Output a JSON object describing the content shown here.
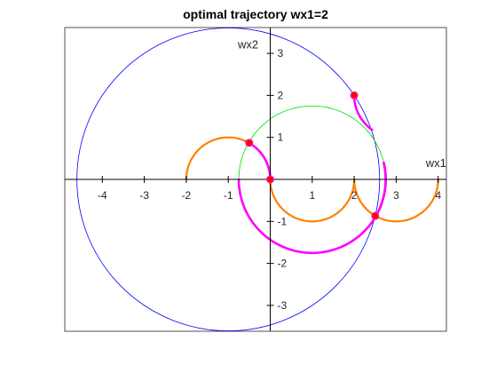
{
  "chart_data": {
    "type": "line",
    "title": "optimal trajectory wx1=2",
    "xlabel": "wx1",
    "ylabel": "wx2",
    "xlim": [
      -4.9,
      4.2
    ],
    "ylim": [
      -3.65,
      3.65
    ],
    "x_ticks": [
      -4,
      -3,
      -2,
      -1,
      1,
      2,
      3,
      4
    ],
    "y_ticks": [
      -3,
      -2,
      -1,
      1,
      2,
      3
    ],
    "x_tick_labels": [
      "-4",
      "-3",
      "-2",
      "-1",
      "1",
      "2",
      "3",
      "4"
    ],
    "y_tick_labels": [
      "-3",
      "-2",
      "-1",
      "1",
      "2",
      "3"
    ],
    "grid": false,
    "axes_through_origin": true,
    "colors": {
      "big_circle": "#0000ff",
      "green_circle": "#00dd00",
      "orange_arcs": "#ff8000",
      "magenta_path": "#ff00ff",
      "points_fill": "#ff0000",
      "points_edge": "#ff1493",
      "axes": "#000000",
      "box": "#262626"
    },
    "series": [
      {
        "kind": "circle",
        "color_key": "big_circle",
        "center": [
          -1,
          0
        ],
        "radius": 3.6056,
        "line_width": 0.8
      },
      {
        "kind": "circle",
        "color_key": "green_circle",
        "center": [
          1,
          0
        ],
        "radius": 1.75,
        "line_width": 0.8
      },
      {
        "kind": "arc",
        "color_key": "orange_arcs",
        "center": [
          -1,
          0
        ],
        "radius": 1,
        "from_deg": 0,
        "to_deg": 180,
        "line_width": 2.2
      },
      {
        "kind": "arc",
        "color_key": "orange_arcs",
        "center": [
          1,
          0
        ],
        "radius": 1,
        "from_deg": 180,
        "to_deg": 360,
        "line_width": 2.2
      },
      {
        "kind": "arc",
        "color_key": "orange_arcs",
        "center": [
          3,
          0
        ],
        "radius": 1,
        "from_deg": 180,
        "to_deg": 360,
        "line_width": 2.2
      },
      {
        "kind": "arc",
        "color_key": "magenta_path",
        "center": [
          -1,
          0
        ],
        "radius": 1,
        "from_deg": 65,
        "to_deg": 0,
        "line_width": 2.6
      },
      {
        "kind": "arc",
        "color_key": "magenta_path",
        "center": [
          1,
          0
        ],
        "radius": 1.75,
        "from_deg": 180,
        "to_deg": 335,
        "line_width": 2.6
      },
      {
        "kind": "arc",
        "color_key": "magenta_path",
        "center": [
          1,
          0
        ],
        "radius": 1.75,
        "from_deg": 335,
        "to_deg": 373,
        "line_width": 2.6
      },
      {
        "kind": "arc",
        "color_key": "magenta_path",
        "center": [
          1,
          0
        ],
        "radius": 1.75,
        "from_deg": 13,
        "to_deg": -28,
        "line_width": 2.6
      },
      {
        "kind": "arc",
        "color_key": "magenta_path",
        "center": [
          3,
          2
        ],
        "radius": 1,
        "from_deg": 180,
        "to_deg": 235,
        "line_width": 2.6
      }
    ],
    "points": [
      {
        "x": 0,
        "y": 0
      },
      {
        "x": -0.5,
        "y": 0.87
      },
      {
        "x": 2.5,
        "y": -0.87
      },
      {
        "x": 2,
        "y": 2
      }
    ]
  }
}
